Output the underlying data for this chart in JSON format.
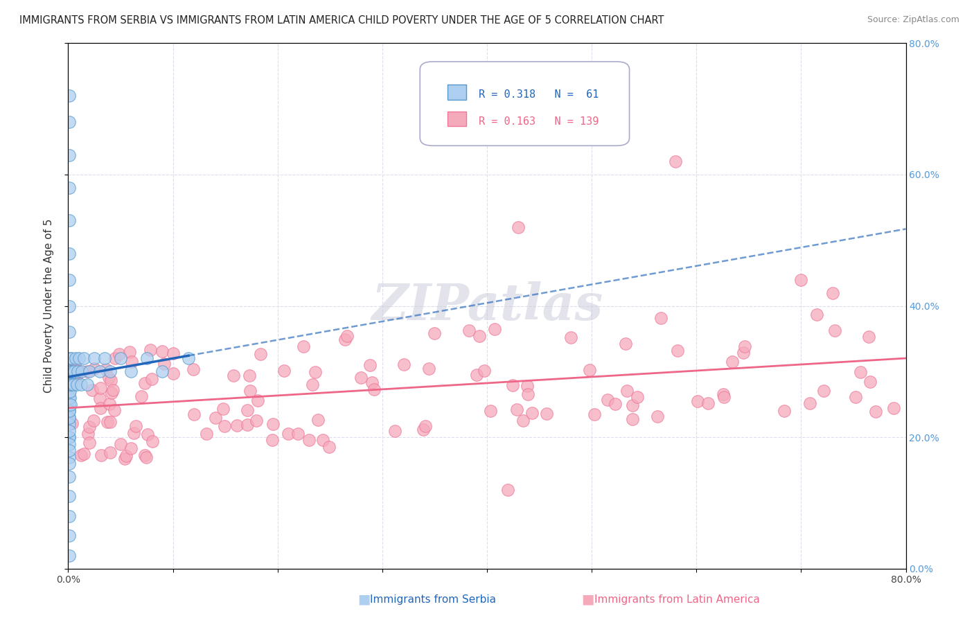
{
  "title": "IMMIGRANTS FROM SERBIA VS IMMIGRANTS FROM LATIN AMERICA CHILD POVERTY UNDER THE AGE OF 5 CORRELATION CHART",
  "source": "Source: ZipAtlas.com",
  "ylabel": "Child Poverty Under the Age of 5",
  "xlabel_serbia": "Immigrants from Serbia",
  "xlabel_latin": "Immigrants from Latin America",
  "xlim": [
    0.0,
    0.8
  ],
  "ylim": [
    0.0,
    0.8
  ],
  "serbia_R": 0.318,
  "serbia_N": 61,
  "latin_R": 0.163,
  "latin_N": 139,
  "serbia_color": "#aecff0",
  "serbia_edge_color": "#5599cc",
  "serbia_line_color": "#2266bb",
  "latin_color": "#f5aabb",
  "latin_edge_color": "#ee7799",
  "latin_line_color": "#ee6688",
  "right_tick_color": "#5599dd",
  "watermark_text": "ZIPatlas",
  "grid_color": "#ddddee",
  "bg_color": "#ffffff"
}
